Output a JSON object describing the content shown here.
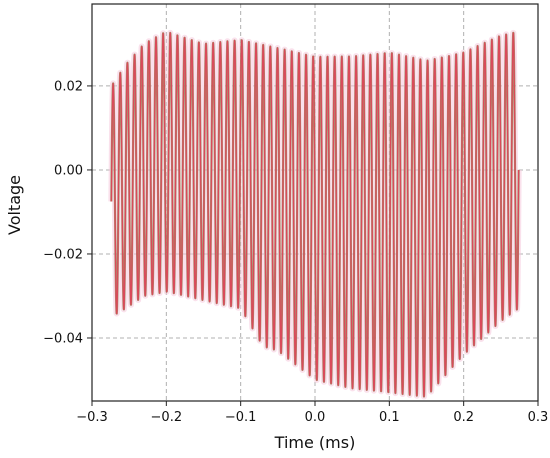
{
  "chart_data": {
    "type": "line",
    "title": "",
    "xlabel": "Time (ms)",
    "ylabel": "Voltage",
    "xlim": [
      -0.3,
      0.3
    ],
    "ylim": [
      -0.055,
      0.0395
    ],
    "xticks": [
      -0.3,
      -0.2,
      -0.1,
      0.0,
      0.1,
      0.2,
      0.3
    ],
    "xtick_labels": [
      "−0.3",
      "−0.2",
      "−0.1",
      "0.0",
      "0.1",
      "0.2",
      "0.3"
    ],
    "yticks": [
      0.02,
      0.0,
      -0.02,
      -0.04
    ],
    "ytick_labels": [
      "0.02",
      "0.00",
      "−0.02",
      "−0.04"
    ],
    "grid": true,
    "legend": "none",
    "colors": {
      "signal": "#d94a5a",
      "overlay": "#8a7a45",
      "glow": "#f6c8dd",
      "grid": "#b0b0b0"
    },
    "series": [
      {
        "label_shown": false,
        "color": "#d94a5a",
        "x_range": [
          -0.274,
          0.274
        ],
        "cycles": 57,
        "peak_envelope": {
          "x": [
            -0.274,
            -0.255,
            -0.23,
            -0.2,
            -0.15,
            -0.1,
            -0.05,
            0.0,
            0.05,
            0.1,
            0.15,
            0.2,
            0.25,
            0.274
          ],
          "y": [
            0.02,
            0.025,
            0.03,
            0.033,
            0.03,
            0.031,
            0.029,
            0.027,
            0.027,
            0.028,
            0.026,
            0.028,
            0.032,
            0.033
          ]
        },
        "trough_envelope": {
          "x": [
            -0.274,
            -0.255,
            -0.23,
            -0.2,
            -0.15,
            -0.1,
            -0.07,
            -0.05,
            0.0,
            0.05,
            0.1,
            0.15,
            0.2,
            0.25,
            0.274
          ],
          "y": [
            -0.035,
            -0.033,
            -0.03,
            -0.029,
            -0.031,
            -0.033,
            -0.042,
            -0.043,
            -0.05,
            -0.052,
            -0.053,
            -0.054,
            -0.044,
            -0.036,
            -0.033
          ]
        }
      }
    ]
  }
}
